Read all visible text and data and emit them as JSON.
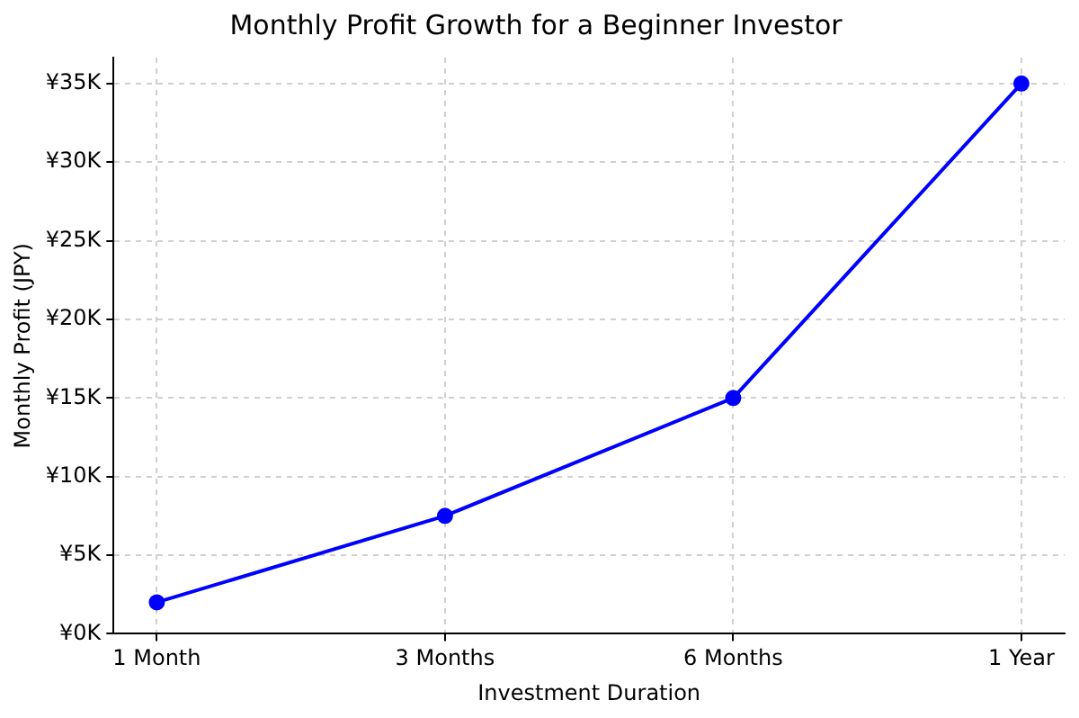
{
  "chart_data": {
    "type": "line",
    "title": "Monthly Profit Growth for a Beginner Investor",
    "xlabel": "Investment Duration",
    "ylabel": "Monthly Profit (JPY)",
    "categories": [
      "1 Month",
      "3 Months",
      "6 Months",
      "1 Year"
    ],
    "series": [
      {
        "color": "#0000ff",
        "values": [
          2000,
          7500,
          15000,
          35000
        ]
      }
    ],
    "ylim": [
      0,
      36650
    ],
    "yticks": [
      {
        "value": 0,
        "label": "¥0K"
      },
      {
        "value": 5000,
        "label": "¥5K"
      },
      {
        "value": 10000,
        "label": "¥10K"
      },
      {
        "value": 15000,
        "label": "¥15K"
      },
      {
        "value": 20000,
        "label": "¥20K"
      },
      {
        "value": 25000,
        "label": "¥25K"
      },
      {
        "value": 30000,
        "label": "¥30K"
      },
      {
        "value": 35000,
        "label": "¥35K"
      }
    ],
    "grid": true,
    "legend": false,
    "marker": "circle",
    "line_style": "solid"
  }
}
